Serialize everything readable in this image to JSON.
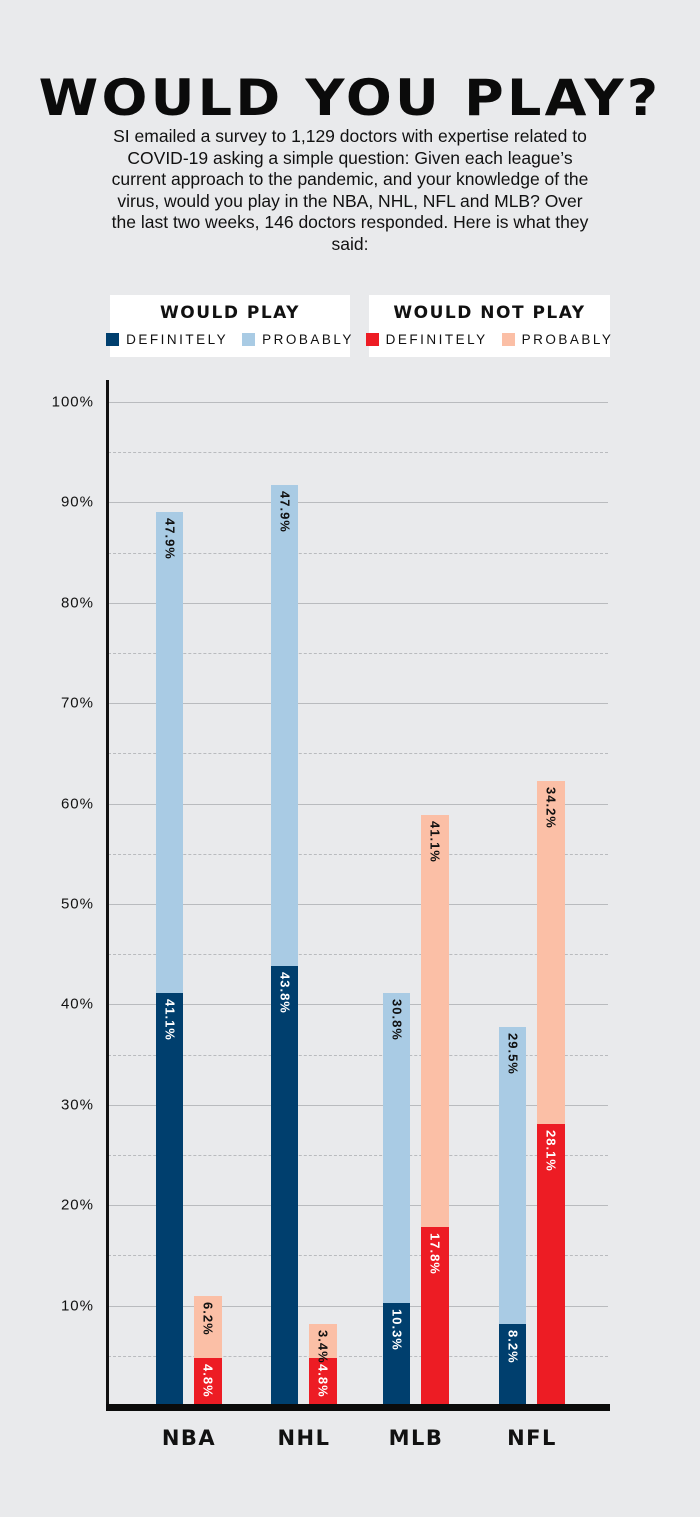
{
  "header": {
    "title": "WOULD YOU PLAY?",
    "intro": "SI emailed a survey to 1,129 doctors with expertise related to COVID-19 asking a simple question: Given each league’s current approach to the pandemic, and your knowledge of the virus, would you play in the NBA, NHL, NFL and MLB? Over the last two weeks, 146 doctors responded. Here is what they said:"
  },
  "legend": {
    "would_play": {
      "title": "WOULD PLAY",
      "definitely": "DEFINITELY",
      "probably": "PROBABLY"
    },
    "would_not_play": {
      "title": "WOULD NOT PLAY",
      "definitely": "DEFINITELY",
      "probably": "PROBABLY"
    }
  },
  "colors": {
    "play_definitely": "#003f6e",
    "play_probably": "#a9cbe4",
    "not_play_definitely": "#ed1c24",
    "not_play_probably": "#fbbfa6",
    "background": "#e9eaec"
  },
  "y_ticks": [
    "10%",
    "20%",
    "30%",
    "40%",
    "50%",
    "60%",
    "70%",
    "80%",
    "90%",
    "100%"
  ],
  "chart_data": {
    "type": "bar",
    "stacked": true,
    "title": "WOULD YOU PLAY?",
    "xlabel": "",
    "ylabel": "",
    "ylim": [
      0,
      100
    ],
    "grid": true,
    "legend_position": "top",
    "categories": [
      "NBA",
      "NHL",
      "MLB",
      "NFL"
    ],
    "series": [
      {
        "name": "Would play - Definitely",
        "stack": "would_play",
        "values": [
          41.1,
          43.8,
          10.3,
          8.2
        ]
      },
      {
        "name": "Would play - Probably",
        "stack": "would_play",
        "values": [
          47.9,
          47.9,
          30.8,
          29.5
        ]
      },
      {
        "name": "Would not play - Definitely",
        "stack": "would_not_play",
        "values": [
          4.8,
          4.8,
          17.8,
          28.1
        ]
      },
      {
        "name": "Would not play - Probably",
        "stack": "would_not_play",
        "values": [
          6.2,
          3.4,
          41.1,
          34.2
        ]
      }
    ],
    "labels": {
      "NBA": {
        "play_definitely": "41.1%",
        "play_probably": "47.9%",
        "not_definitely": "4.8%",
        "not_probably": "6.2%"
      },
      "NHL": {
        "play_definitely": "43.8%",
        "play_probably": "47.9%",
        "not_definitely": "4.8%",
        "not_probably": "3.4%"
      },
      "MLB": {
        "play_definitely": "10.3%",
        "play_probably": "30.8%",
        "not_definitely": "17.8%",
        "not_probably": "41.1%"
      },
      "NFL": {
        "play_definitely": "8.2%",
        "play_probably": "29.5%",
        "not_definitely": "28.1%",
        "not_probably": "34.2%"
      }
    }
  }
}
